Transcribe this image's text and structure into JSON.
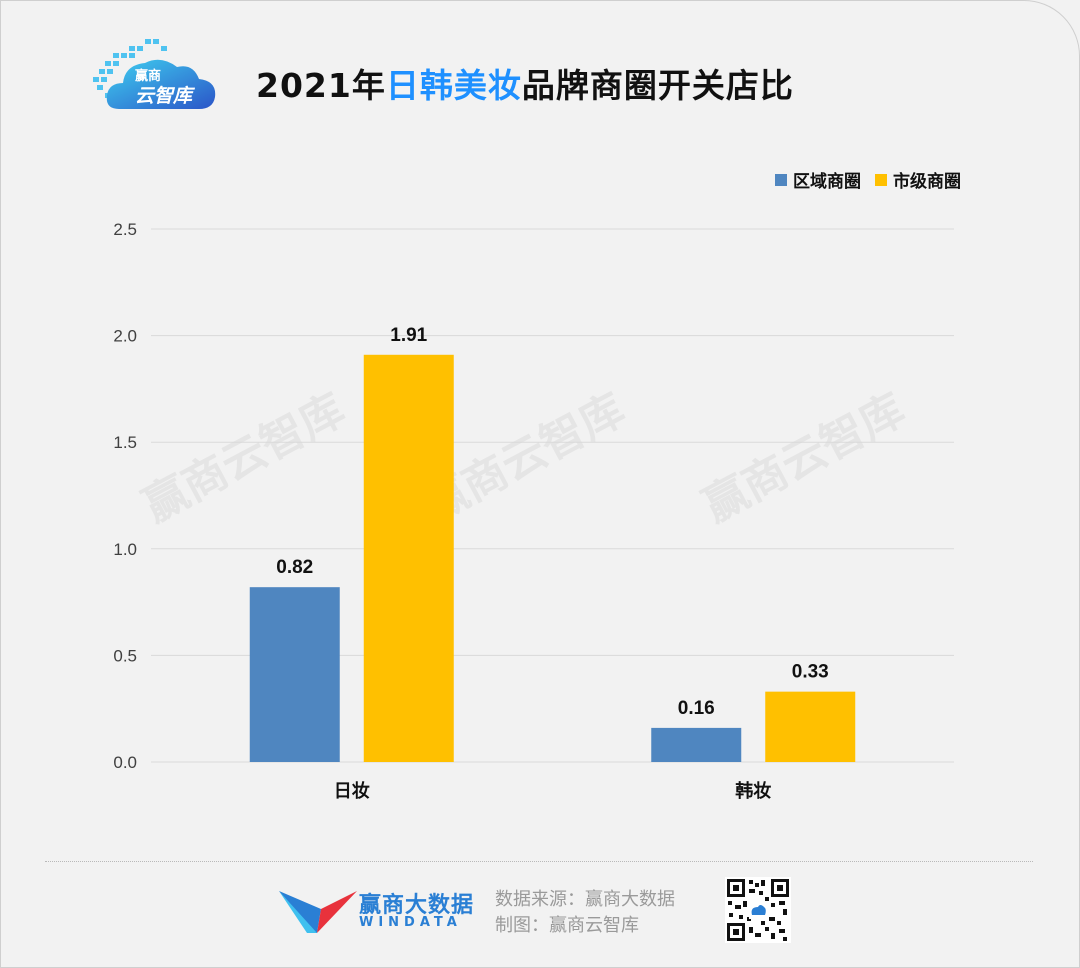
{
  "logo": {
    "line1": "赢商",
    "line2": "云智库"
  },
  "title": {
    "prefix": "2021年",
    "highlight": "日韩美妆",
    "suffix": "品牌商圈开关店比"
  },
  "colors": {
    "series1": "#4f86c0",
    "series2": "#ffc000",
    "grid": "#d9d9d9",
    "title_highlight": "#1e90ff"
  },
  "watermark": "赢商云智库",
  "chart_data": {
    "type": "bar",
    "categories": [
      "日妆",
      "韩妆"
    ],
    "series": [
      {
        "name": "区域商圈",
        "values": [
          0.82,
          0.16
        ]
      },
      {
        "name": "市级商圈",
        "values": [
          1.91,
          0.33
        ]
      }
    ],
    "ylim": [
      0,
      2.5
    ],
    "yticks": [
      "0.0",
      "0.5",
      "1.0",
      "1.5",
      "2.0",
      "2.5"
    ],
    "grid": true,
    "legend": "top-right"
  },
  "footer": {
    "brand_cn": "赢商大数据",
    "brand_en": "WINDATA",
    "source": "数据来源：赢商大数据",
    "made_by": "制图：赢商云智库"
  }
}
